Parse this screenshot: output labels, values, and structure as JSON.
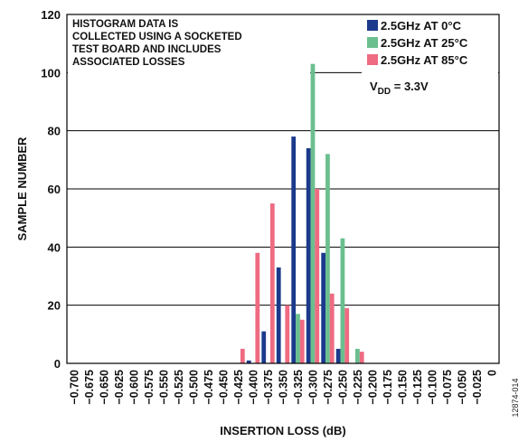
{
  "chart_data": {
    "type": "bar",
    "xlabel": "INSERTION LOSS (dB)",
    "ylabel": "SAMPLE NUMBER",
    "ylim": [
      0,
      120
    ],
    "yticks": [
      "0",
      "20",
      "40",
      "60",
      "80",
      "100",
      "120"
    ],
    "grid": "horizontal",
    "legend_position": "top-right",
    "categories": [
      "−0.700",
      "−0.675",
      "−0.650",
      "−0.625",
      "−0.600",
      "−0.575",
      "−0.550",
      "−0.525",
      "−0.500",
      "−0.475",
      "−0.450",
      "−0.425",
      "−0.400",
      "−0.375",
      "−0.350",
      "−0.325",
      "−0.300",
      "−0.275",
      "−0.250",
      "−0.225",
      "−0.200",
      "−0.175",
      "−0.150",
      "−0.125",
      "−0.100",
      "−0.075",
      "−0.050",
      "−0.025",
      "0"
    ],
    "series": [
      {
        "name": "2.5GHz AT 0°C",
        "color": "#1b3a8c",
        "values": [
          0,
          0,
          0,
          0,
          0,
          0,
          0,
          0,
          0,
          0,
          0,
          0,
          1,
          11,
          33,
          78,
          74,
          38,
          5,
          0,
          0,
          0,
          0,
          0,
          0,
          0,
          0,
          0,
          0
        ]
      },
      {
        "name": "2.5GHz AT 25°C",
        "color": "#6bbf8e",
        "values": [
          0,
          0,
          0,
          0,
          0,
          0,
          0,
          0,
          0,
          0,
          0,
          0,
          0,
          0,
          0,
          17,
          103,
          72,
          43,
          5,
          0,
          0,
          0,
          0,
          0,
          0,
          0,
          0,
          0
        ]
      },
      {
        "name": "2.5GHz AT 85°C",
        "color": "#ee6b82",
        "values": [
          0,
          0,
          0,
          0,
          0,
          0,
          0,
          0,
          0,
          0,
          0,
          5,
          38,
          55,
          20,
          15,
          60,
          24,
          19,
          4,
          0,
          0,
          0,
          0,
          0,
          0,
          0,
          0,
          0
        ]
      }
    ],
    "annotation_lines": [
      "HISTOGRAM DATA IS",
      "COLLECTED USING A SOCKETED",
      "TEST BOARD AND INCLUDES",
      "ASSOCIATED LOSSES"
    ],
    "vdd_label": {
      "main": "V",
      "sub": "DD",
      "rest": " = 3.3V"
    },
    "figure_id": "12874-014"
  }
}
